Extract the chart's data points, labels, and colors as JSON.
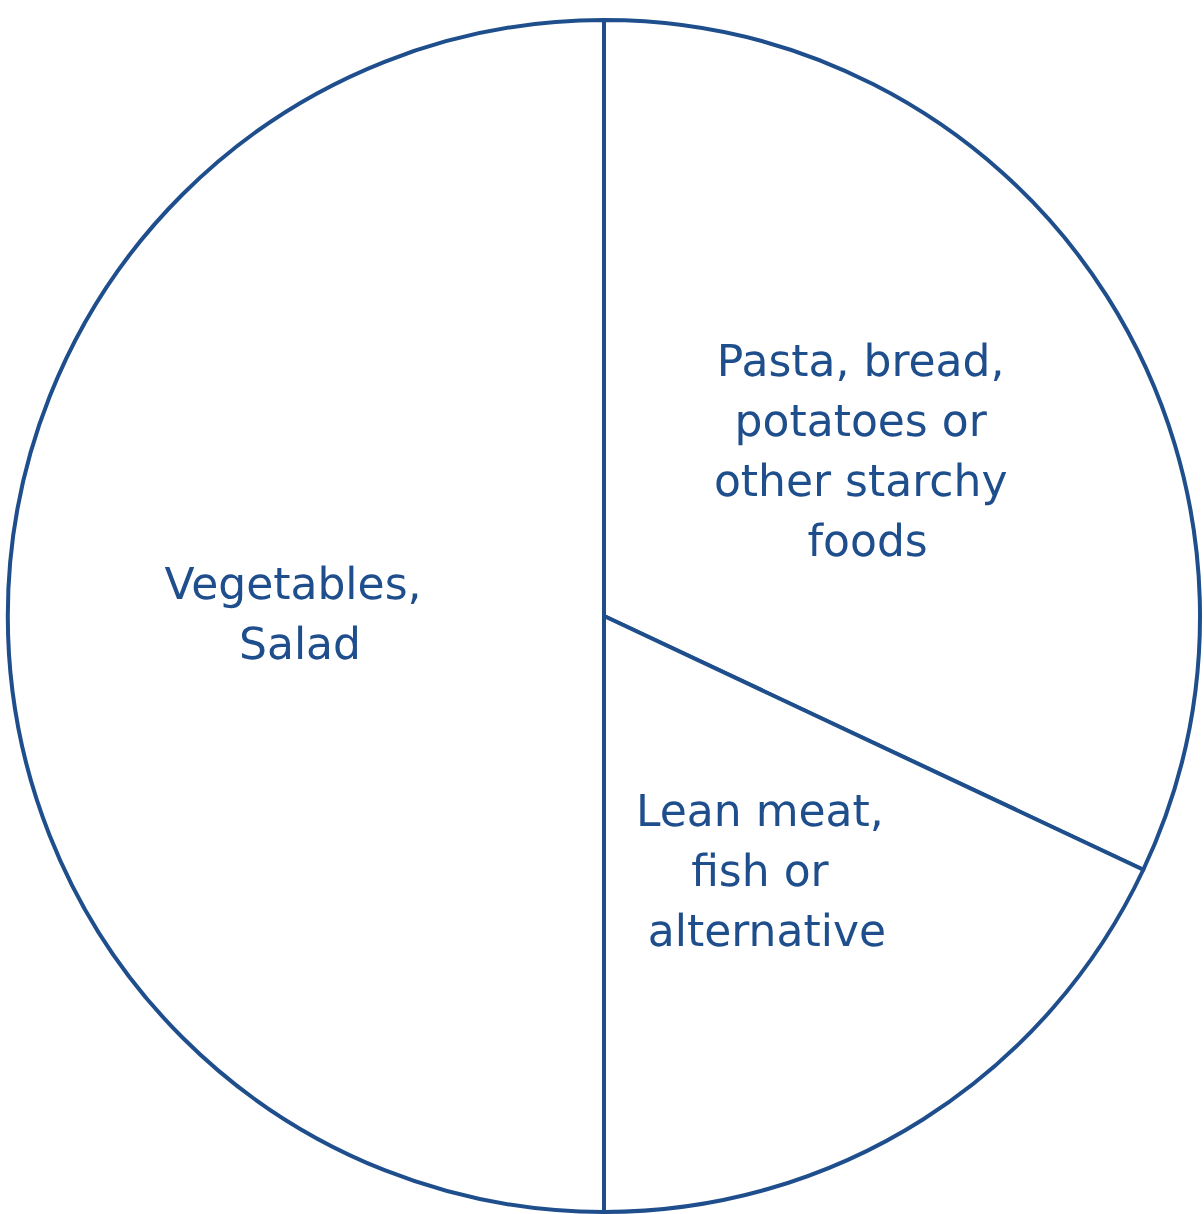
{
  "chart_data": {
    "type": "pie",
    "categories": [
      "Pasta, bread, potatoes or other starchy foods",
      "Lean meat, fish or alternative",
      "Vegetables, Salad"
    ],
    "values": [
      32,
      18,
      50
    ],
    "colors": [
      "#ffffff",
      "#ffffff",
      "#ffffff"
    ],
    "legend": false
  }
}
